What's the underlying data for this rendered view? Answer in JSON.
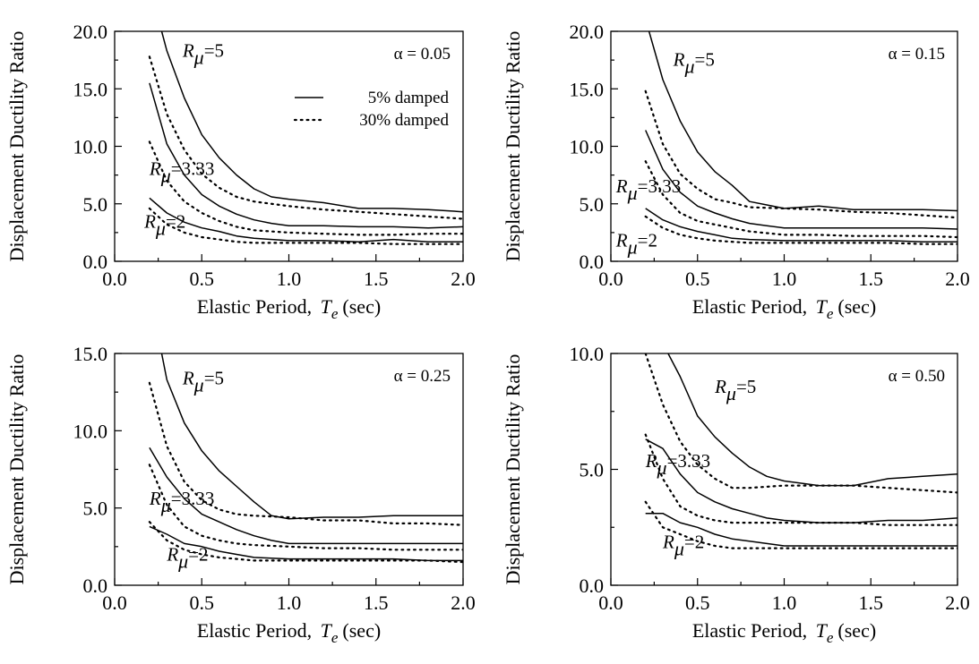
{
  "chart_data": [
    {
      "type": "line",
      "alpha_label": "α = 0.05",
      "ylabel": "Displacement Ductility Ratio",
      "xlabel_text": "Elastic Period,",
      "xlabel_var": "T",
      "xlabel_sub": "e",
      "xlabel_unit": "(sec)",
      "xlim": [
        0,
        2
      ],
      "ylim": [
        0,
        20
      ],
      "xticks": [
        "0.0",
        "0.5",
        "1.0",
        "1.5",
        "2.0"
      ],
      "yticks": [
        "0.0",
        "5.0",
        "10.0",
        "15.0",
        "20.0"
      ],
      "ytick_values": [
        0,
        5,
        10,
        15,
        20
      ],
      "legend": {
        "solid": "5% damped",
        "dotted": "30% damped"
      },
      "series": [
        {
          "style": "solid",
          "x": [
            0.27,
            0.3,
            0.4,
            0.5,
            0.6,
            0.7,
            0.8,
            0.9,
            1.0,
            1.2,
            1.4,
            1.6,
            1.8,
            2.0
          ],
          "y": [
            20,
            18.3,
            14.2,
            11.0,
            9.0,
            7.5,
            6.3,
            5.6,
            5.4,
            5.1,
            4.6,
            4.6,
            4.5,
            4.3
          ]
        },
        {
          "style": "dotted",
          "x": [
            0.2,
            0.3,
            0.4,
            0.5,
            0.6,
            0.7,
            0.8,
            1.0,
            1.2,
            1.4,
            1.6,
            1.8,
            2.0
          ],
          "y": [
            17.8,
            12.8,
            9.7,
            7.6,
            6.4,
            5.6,
            5.2,
            4.8,
            4.5,
            4.3,
            4.1,
            3.9,
            3.7
          ]
        },
        {
          "style": "solid",
          "x": [
            0.2,
            0.3,
            0.4,
            0.5,
            0.6,
            0.7,
            0.8,
            0.9,
            1.0,
            1.2,
            1.4,
            1.6,
            1.8,
            2.0
          ],
          "y": [
            15.5,
            10.2,
            7.5,
            5.8,
            4.8,
            4.1,
            3.6,
            3.3,
            3.1,
            3.1,
            3.0,
            3.0,
            2.9,
            3.0
          ]
        },
        {
          "style": "dotted",
          "x": [
            0.2,
            0.3,
            0.4,
            0.5,
            0.6,
            0.7,
            0.8,
            1.0,
            1.2,
            1.4,
            1.6,
            1.8,
            2.0
          ],
          "y": [
            10.4,
            7.0,
            5.2,
            4.2,
            3.5,
            3.0,
            2.7,
            2.5,
            2.4,
            2.3,
            2.3,
            2.4,
            2.4
          ]
        },
        {
          "style": "solid",
          "x": [
            0.2,
            0.3,
            0.4,
            0.5,
            0.6,
            0.7,
            0.8,
            1.0,
            1.2,
            1.4,
            1.6,
            1.8,
            2.0
          ],
          "y": [
            5.5,
            4.2,
            3.4,
            2.9,
            2.6,
            2.2,
            2.0,
            1.8,
            1.8,
            1.7,
            1.9,
            1.7,
            1.7
          ]
        },
        {
          "style": "dotted",
          "x": [
            0.2,
            0.3,
            0.4,
            0.5,
            0.6,
            0.7,
            0.8,
            1.0,
            1.2,
            1.4,
            1.6,
            1.8,
            2.0
          ],
          "y": [
            4.6,
            3.2,
            2.5,
            2.1,
            1.9,
            1.7,
            1.6,
            1.6,
            1.6,
            1.6,
            1.5,
            1.5,
            1.5
          ]
        }
      ],
      "curve_labels": [
        {
          "r": "R",
          "sub": "μ",
          "text": "=5",
          "x": 0.39,
          "y": 17.8
        },
        {
          "r": "R",
          "sub": "μ",
          "text": "=3.33",
          "x": 0.2,
          "y": 7.5
        },
        {
          "r": "R",
          "sub": "μ",
          "text": "=2",
          "x": 0.17,
          "y": 2.9
        }
      ]
    },
    {
      "type": "line",
      "alpha_label": "α = 0.15",
      "ylabel": "Displacement Ductility Ratio",
      "xlabel_text": "Elastic Period,",
      "xlabel_var": "T",
      "xlabel_sub": "e",
      "xlabel_unit": "(sec)",
      "xlim": [
        0,
        2
      ],
      "ylim": [
        0,
        20
      ],
      "xticks": [
        "0.0",
        "0.5",
        "1.0",
        "1.5",
        "2.0"
      ],
      "yticks": [
        "0.0",
        "5.0",
        "10.0",
        "15.0",
        "20.0"
      ],
      "ytick_values": [
        0,
        5,
        10,
        15,
        20
      ],
      "series": [
        {
          "style": "solid",
          "x": [
            0.22,
            0.3,
            0.4,
            0.5,
            0.6,
            0.7,
            0.8,
            0.9,
            1.0,
            1.2,
            1.4,
            1.6,
            1.8,
            2.0
          ],
          "y": [
            20,
            15.8,
            12.2,
            9.5,
            7.8,
            6.6,
            5.2,
            4.9,
            4.6,
            4.8,
            4.5,
            4.5,
            4.5,
            4.4
          ]
        },
        {
          "style": "dotted",
          "x": [
            0.2,
            0.3,
            0.4,
            0.5,
            0.6,
            0.7,
            0.8,
            1.0,
            1.2,
            1.4,
            1.6,
            1.8,
            2.0
          ],
          "y": [
            14.8,
            10.2,
            7.6,
            6.3,
            5.4,
            5.1,
            4.7,
            4.6,
            4.5,
            4.3,
            4.2,
            4.0,
            3.8
          ]
        },
        {
          "style": "solid",
          "x": [
            0.2,
            0.3,
            0.4,
            0.5,
            0.6,
            0.7,
            0.8,
            0.9,
            1.0,
            1.2,
            1.4,
            1.6,
            1.8,
            2.0
          ],
          "y": [
            11.4,
            8.0,
            6.0,
            4.8,
            4.2,
            3.7,
            3.3,
            3.1,
            2.9,
            2.9,
            2.9,
            2.9,
            2.9,
            2.8
          ]
        },
        {
          "style": "dotted",
          "x": [
            0.2,
            0.3,
            0.4,
            0.5,
            0.6,
            0.7,
            0.8,
            1.0,
            1.2,
            1.4,
            1.6,
            1.8,
            2.0
          ],
          "y": [
            8.7,
            5.8,
            4.2,
            3.5,
            3.2,
            2.9,
            2.6,
            2.3,
            2.3,
            2.2,
            2.2,
            2.2,
            2.1
          ]
        },
        {
          "style": "solid",
          "x": [
            0.2,
            0.3,
            0.4,
            0.5,
            0.6,
            0.7,
            0.8,
            1.0,
            1.2,
            1.4,
            1.6,
            1.8,
            2.0
          ],
          "y": [
            4.6,
            3.6,
            3.0,
            2.6,
            2.3,
            2.0,
            1.9,
            1.8,
            1.8,
            1.8,
            1.8,
            1.7,
            1.7
          ]
        },
        {
          "style": "dotted",
          "x": [
            0.2,
            0.3,
            0.4,
            0.5,
            0.6,
            0.7,
            0.8,
            1.0,
            1.2,
            1.4,
            1.6,
            1.8,
            2.0
          ],
          "y": [
            3.9,
            2.9,
            2.3,
            2.0,
            1.8,
            1.7,
            1.6,
            1.6,
            1.6,
            1.6,
            1.6,
            1.5,
            1.5
          ]
        }
      ],
      "curve_labels": [
        {
          "r": "R",
          "sub": "μ",
          "text": "=5",
          "x": 0.36,
          "y": 17.0
        },
        {
          "r": "R",
          "sub": "μ",
          "text": "=3.33",
          "x": 0.03,
          "y": 6.0
        },
        {
          "r": "R",
          "sub": "μ",
          "text": "=2",
          "x": 0.03,
          "y": 1.3
        }
      ]
    },
    {
      "type": "line",
      "alpha_label": "α = 0.25",
      "ylabel": "Displacement Ductility Ratio",
      "xlabel_text": "Elastic Period,",
      "xlabel_var": "T",
      "xlabel_sub": "e",
      "xlabel_unit": "(sec)",
      "xlim": [
        0,
        2
      ],
      "ylim": [
        0,
        15
      ],
      "xticks": [
        "0.0",
        "0.5",
        "1.0",
        "1.5",
        "2.0"
      ],
      "yticks": [
        "0.0",
        "5.0",
        "10.0",
        "15.0"
      ],
      "ytick_values": [
        0,
        5,
        10,
        15
      ],
      "series": [
        {
          "style": "solid",
          "x": [
            0.27,
            0.3,
            0.4,
            0.5,
            0.6,
            0.7,
            0.8,
            0.9,
            1.0,
            1.2,
            1.4,
            1.6,
            1.8,
            2.0
          ],
          "y": [
            15,
            13.3,
            10.5,
            8.7,
            7.4,
            6.4,
            5.4,
            4.5,
            4.3,
            4.4,
            4.4,
            4.5,
            4.5,
            4.5
          ]
        },
        {
          "style": "dotted",
          "x": [
            0.2,
            0.3,
            0.4,
            0.5,
            0.6,
            0.7,
            0.8,
            1.0,
            1.2,
            1.4,
            1.6,
            1.8,
            2.0
          ],
          "y": [
            13.1,
            9.0,
            6.7,
            5.5,
            4.9,
            4.6,
            4.5,
            4.4,
            4.2,
            4.2,
            4.0,
            4.0,
            3.9
          ]
        },
        {
          "style": "solid",
          "x": [
            0.2,
            0.3,
            0.4,
            0.5,
            0.6,
            0.7,
            0.8,
            0.9,
            1.0,
            1.2,
            1.4,
            1.6,
            1.8,
            2.0
          ],
          "y": [
            8.9,
            7.0,
            5.6,
            4.6,
            4.1,
            3.6,
            3.2,
            2.9,
            2.7,
            2.7,
            2.7,
            2.7,
            2.7,
            2.7
          ]
        },
        {
          "style": "dotted",
          "x": [
            0.2,
            0.3,
            0.4,
            0.5,
            0.6,
            0.7,
            0.8,
            1.0,
            1.2,
            1.4,
            1.6,
            1.8,
            2.0
          ],
          "y": [
            7.8,
            5.2,
            3.8,
            3.2,
            2.9,
            2.7,
            2.6,
            2.5,
            2.4,
            2.4,
            2.3,
            2.3,
            2.3
          ]
        },
        {
          "style": "solid",
          "x": [
            0.2,
            0.3,
            0.4,
            0.5,
            0.6,
            0.7,
            0.8,
            1.0,
            1.2,
            1.4,
            1.6,
            1.8,
            2.0
          ],
          "y": [
            3.8,
            3.3,
            2.7,
            2.5,
            2.2,
            2.0,
            1.8,
            1.7,
            1.7,
            1.7,
            1.7,
            1.6,
            1.6
          ]
        },
        {
          "style": "dotted",
          "x": [
            0.2,
            0.3,
            0.4,
            0.5,
            0.6,
            0.7,
            0.8,
            1.0,
            1.2,
            1.4,
            1.6,
            1.8,
            2.0
          ],
          "y": [
            4.1,
            2.9,
            2.3,
            2.0,
            1.8,
            1.7,
            1.6,
            1.6,
            1.6,
            1.6,
            1.6,
            1.6,
            1.5
          ]
        }
      ],
      "curve_labels": [
        {
          "r": "R",
          "sub": "μ",
          "text": "=5",
          "x": 0.39,
          "y": 13.0
        },
        {
          "r": "R",
          "sub": "μ",
          "text": "=3.33",
          "x": 0.2,
          "y": 5.2
        },
        {
          "r": "R",
          "sub": "μ",
          "text": "=2",
          "x": 0.3,
          "y": 1.6
        }
      ]
    },
    {
      "type": "line",
      "alpha_label": "α = 0.50",
      "ylabel": "Displacement Ductility Ratio",
      "xlabel_text": "Elastic Period,",
      "xlabel_var": "T",
      "xlabel_sub": "e",
      "xlabel_unit": "(sec)",
      "xlim": [
        0,
        2
      ],
      "ylim": [
        0,
        10
      ],
      "xticks": [
        "0.0",
        "0.5",
        "1.0",
        "1.5",
        "2.0"
      ],
      "yticks": [
        "0.0",
        "5.0",
        "10.0"
      ],
      "ytick_values": [
        0,
        5,
        10
      ],
      "series": [
        {
          "style": "solid",
          "x": [
            0.33,
            0.4,
            0.5,
            0.6,
            0.7,
            0.8,
            0.9,
            1.0,
            1.2,
            1.4,
            1.6,
            1.8,
            2.0
          ],
          "y": [
            10,
            9.0,
            7.3,
            6.4,
            5.7,
            5.1,
            4.7,
            4.5,
            4.3,
            4.3,
            4.6,
            4.7,
            4.8
          ]
        },
        {
          "style": "dotted",
          "x": [
            0.2,
            0.3,
            0.4,
            0.5,
            0.6,
            0.7,
            0.8,
            1.0,
            1.2,
            1.4,
            1.6,
            1.8,
            2.0
          ],
          "y": [
            10,
            7.8,
            6.2,
            5.2,
            4.6,
            4.2,
            4.2,
            4.3,
            4.3,
            4.3,
            4.2,
            4.1,
            4.0
          ]
        },
        {
          "style": "solid",
          "x": [
            0.2,
            0.3,
            0.4,
            0.5,
            0.6,
            0.7,
            0.8,
            0.9,
            1.0,
            1.2,
            1.4,
            1.6,
            1.8,
            2.0
          ],
          "y": [
            6.3,
            5.9,
            4.8,
            4.0,
            3.6,
            3.3,
            3.1,
            2.9,
            2.8,
            2.7,
            2.7,
            2.8,
            2.8,
            2.9
          ]
        },
        {
          "style": "dotted",
          "x": [
            0.2,
            0.3,
            0.4,
            0.5,
            0.6,
            0.7,
            0.8,
            1.0,
            1.2,
            1.4,
            1.6,
            1.8,
            2.0
          ],
          "y": [
            6.5,
            4.6,
            3.4,
            3.0,
            2.8,
            2.7,
            2.7,
            2.7,
            2.7,
            2.7,
            2.6,
            2.6,
            2.6
          ]
        },
        {
          "style": "solid",
          "x": [
            0.2,
            0.3,
            0.4,
            0.5,
            0.6,
            0.7,
            0.8,
            1.0,
            1.2,
            1.4,
            1.6,
            1.8,
            2.0
          ],
          "y": [
            3.1,
            3.1,
            2.7,
            2.5,
            2.2,
            2.0,
            1.9,
            1.7,
            1.7,
            1.7,
            1.7,
            1.7,
            1.7
          ]
        },
        {
          "style": "dotted",
          "x": [
            0.2,
            0.3,
            0.4,
            0.5,
            0.6,
            0.7,
            0.8,
            1.0,
            1.2,
            1.4,
            1.6,
            1.8,
            2.0
          ],
          "y": [
            3.6,
            2.5,
            2.2,
            1.9,
            1.7,
            1.6,
            1.6,
            1.6,
            1.6,
            1.6,
            1.6,
            1.6,
            1.6
          ]
        }
      ],
      "curve_labels": [
        {
          "r": "R",
          "sub": "μ",
          "text": "=5",
          "x": 0.6,
          "y": 8.3
        },
        {
          "r": "R",
          "sub": "μ",
          "text": "=3.33",
          "x": 0.2,
          "y": 5.1
        },
        {
          "r": "R",
          "sub": "μ",
          "text": "=2",
          "x": 0.3,
          "y": 1.6
        }
      ]
    }
  ]
}
